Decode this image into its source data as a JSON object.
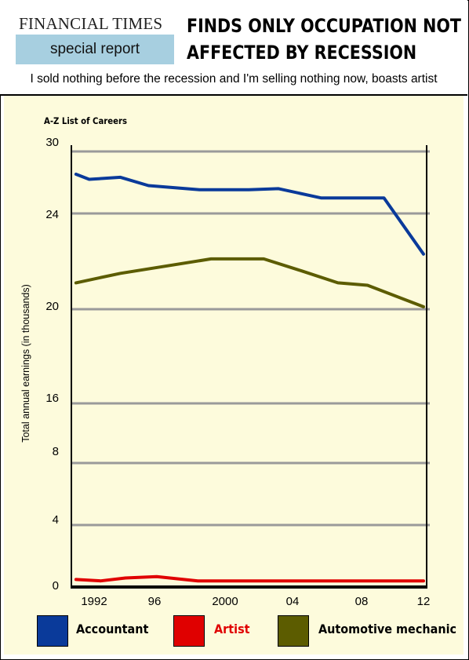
{
  "header": {
    "masthead": "FINANCIAL TIMES",
    "section_badge": "special report",
    "headline_line1": "FINDS ONLY OCCUPATION NOT",
    "headline_line2": "AFFECTED BY RECESSION",
    "subheadline": "I sold nothing before the recession and I'm selling nothing now, boasts artist"
  },
  "colors": {
    "accountant": "#0a3a9a",
    "artist": "#e00000",
    "mechanic": "#5c5c00",
    "grid": "#9a9a9a",
    "panel_bg": "#fdfbdc",
    "badge_bg": "#a7cfe0"
  },
  "chart_data": {
    "type": "line",
    "title": "A-Z List of Careers",
    "xlabel": "",
    "ylabel": "Total annual earnings (in thousands)",
    "x_tick_labels": [
      "1992",
      "96",
      "2000",
      "04",
      "08",
      "12"
    ],
    "y_tick_labels": [
      "0",
      "4",
      "8",
      "16",
      "20",
      "24",
      "30"
    ],
    "grid": true,
    "legend_position": "bottom",
    "series": [
      {
        "name": "Accountant",
        "x": [
          1990.9,
          1991.7,
          1993.6,
          1995.3,
          1998.4,
          2001.4,
          2003.2,
          2005.8,
          2009.6,
          2012.0
        ],
        "values": [
          27.8,
          27.3,
          27.5,
          26.7,
          26.3,
          26.3,
          26.4,
          25.5,
          25.5,
          22.3
        ]
      },
      {
        "name": "Artist",
        "x": [
          1990.9,
          1992.4,
          1993.9,
          1995.8,
          1998.3,
          2012.0
        ],
        "values": [
          0.2,
          0.1,
          0.3,
          0.4,
          0.1,
          0.1
        ]
      },
      {
        "name": "Automotive mechanic",
        "x": [
          1990.9,
          1993.6,
          1999.1,
          2002.3,
          2004.6,
          2006.8,
          2008.6,
          2012.0
        ],
        "values": [
          21.1,
          21.5,
          22.1,
          22.1,
          21.6,
          21.1,
          21.0,
          20.1
        ]
      }
    ]
  }
}
